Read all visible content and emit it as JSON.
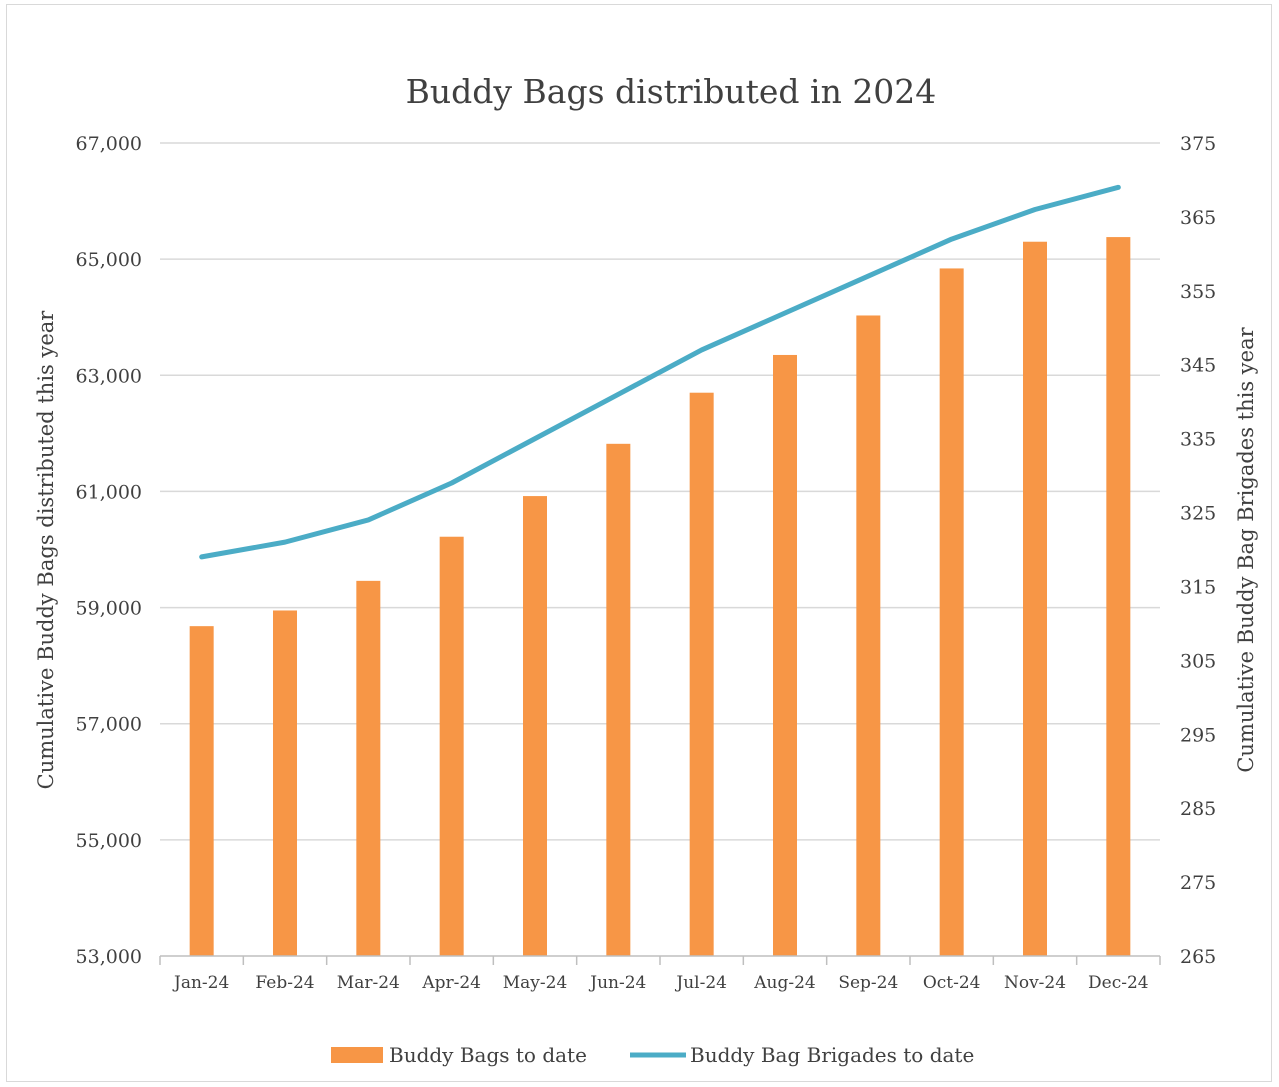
{
  "chart_data": {
    "type": "bar",
    "title": "Buddy Bags distributed in 2024",
    "categories": [
      "Jan-24",
      "Feb-24",
      "Mar-24",
      "Apr-24",
      "May-24",
      "Jun-24",
      "Jul-24",
      "Aug-24",
      "Sep-24",
      "Oct-24",
      "Nov-24",
      "Dec-24"
    ],
    "y_left": {
      "label": "Cumulative Buddy Bags distributed this year",
      "range": [
        53000,
        67000
      ],
      "ticks": [
        "53,000",
        "55,000",
        "57,000",
        "59,000",
        "61,000",
        "63,000",
        "65,000",
        "67,000"
      ]
    },
    "y_right": {
      "label": "Cumulative Buddy Bag Brigades this year",
      "range": [
        265,
        375
      ],
      "ticks": [
        "265",
        "275",
        "285",
        "295",
        "305",
        "315",
        "325",
        "335",
        "345",
        "355",
        "365",
        "375"
      ]
    },
    "series": [
      {
        "name": "Buddy Bags to date",
        "type": "bar",
        "axis": "left",
        "color": "#F79646",
        "values": [
          58680,
          58950,
          59460,
          60220,
          60920,
          61820,
          62700,
          63350,
          64030,
          64840,
          65300,
          65380
        ]
      },
      {
        "name": "Buddy Bag Brigades to date",
        "type": "line",
        "axis": "right",
        "color": "#4BACC6",
        "values": [
          319,
          321,
          324,
          329,
          335,
          341,
          347,
          352,
          357,
          362,
          366,
          369
        ]
      }
    ],
    "grid": true,
    "legend_position": "bottom"
  }
}
